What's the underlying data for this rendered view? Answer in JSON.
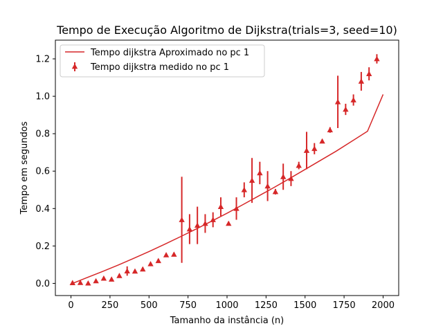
{
  "chart_data": {
    "type": "scatter",
    "title": "Tempo de Execução Algoritmo de Dijkstra(trials=3, seed=10)",
    "xlabel": "Tamanho da instância (n)",
    "ylabel": "Tempo em segundos",
    "xlim": [
      -100,
      2100
    ],
    "ylim": [
      -0.065,
      1.3
    ],
    "xticks": [
      0,
      250,
      500,
      750,
      1000,
      1250,
      1500,
      1750,
      2000
    ],
    "yticks": [
      0.0,
      0.2,
      0.4,
      0.6,
      0.8,
      1.0,
      1.2
    ],
    "xtick_labels": [
      "0",
      "250",
      "500",
      "750",
      "1000",
      "1250",
      "1500",
      "1750",
      "2000"
    ],
    "ytick_labels": [
      "0.0",
      "0.2",
      "0.4",
      "0.6",
      "0.8",
      "1.0",
      "1.2"
    ],
    "grid": false,
    "legend_position": "top-left",
    "color": "#d62728",
    "series": [
      {
        "name": "Tempo dijkstra Aproximado no pc 1",
        "kind": "line",
        "x": [
          10,
          100,
          200,
          300,
          400,
          500,
          600,
          700,
          800,
          900,
          1000,
          1100,
          1200,
          1300,
          1400,
          1500,
          1600,
          1700,
          1800,
          1900,
          2000
        ],
        "y": [
          0.0,
          0.03,
          0.063,
          0.097,
          0.133,
          0.17,
          0.209,
          0.249,
          0.29,
          0.332,
          0.375,
          0.42,
          0.466,
          0.512,
          0.56,
          0.609,
          0.658,
          0.707,
          0.76,
          0.813,
          1.01
        ]
      },
      {
        "name": "Tempo dijkstra medido no pc 1",
        "kind": "errorbar",
        "marker": "triangle",
        "points": [
          {
            "x": 10,
            "y": 0.003,
            "err": 0.005
          },
          {
            "x": 60,
            "y": 0.004,
            "err": 0.005
          },
          {
            "x": 110,
            "y": 0.001,
            "err": 0.005
          },
          {
            "x": 160,
            "y": 0.013,
            "err": 0.005
          },
          {
            "x": 210,
            "y": 0.027,
            "err": 0.008
          },
          {
            "x": 260,
            "y": 0.022,
            "err": 0.008
          },
          {
            "x": 310,
            "y": 0.041,
            "err": 0.01
          },
          {
            "x": 360,
            "y": 0.066,
            "err": 0.025
          },
          {
            "x": 410,
            "y": 0.065,
            "err": 0.01
          },
          {
            "x": 460,
            "y": 0.076,
            "err": 0.01
          },
          {
            "x": 510,
            "y": 0.104,
            "err": 0.01
          },
          {
            "x": 560,
            "y": 0.121,
            "err": 0.01
          },
          {
            "x": 610,
            "y": 0.152,
            "err": 0.01
          },
          {
            "x": 660,
            "y": 0.155,
            "err": 0.01
          },
          {
            "x": 710,
            "y": 0.34,
            "err": 0.23
          },
          {
            "x": 760,
            "y": 0.29,
            "err": 0.08
          },
          {
            "x": 810,
            "y": 0.31,
            "err": 0.1
          },
          {
            "x": 860,
            "y": 0.32,
            "err": 0.05
          },
          {
            "x": 910,
            "y": 0.34,
            "err": 0.04
          },
          {
            "x": 960,
            "y": 0.41,
            "err": 0.05
          },
          {
            "x": 1010,
            "y": 0.32,
            "err": 0.01
          },
          {
            "x": 1060,
            "y": 0.4,
            "err": 0.06
          },
          {
            "x": 1110,
            "y": 0.5,
            "err": 0.04
          },
          {
            "x": 1160,
            "y": 0.55,
            "err": 0.12
          },
          {
            "x": 1210,
            "y": 0.59,
            "err": 0.06
          },
          {
            "x": 1260,
            "y": 0.52,
            "err": 0.08
          },
          {
            "x": 1310,
            "y": 0.49,
            "err": 0.015
          },
          {
            "x": 1360,
            "y": 0.57,
            "err": 0.07
          },
          {
            "x": 1410,
            "y": 0.56,
            "err": 0.04
          },
          {
            "x": 1460,
            "y": 0.63,
            "err": 0.02
          },
          {
            "x": 1510,
            "y": 0.71,
            "err": 0.1
          },
          {
            "x": 1560,
            "y": 0.72,
            "err": 0.03
          },
          {
            "x": 1610,
            "y": 0.76,
            "err": 0.01
          },
          {
            "x": 1660,
            "y": 0.82,
            "err": 0.015
          },
          {
            "x": 1710,
            "y": 0.97,
            "err": 0.14
          },
          {
            "x": 1760,
            "y": 0.93,
            "err": 0.03
          },
          {
            "x": 1810,
            "y": 0.98,
            "err": 0.03
          },
          {
            "x": 1860,
            "y": 1.08,
            "err": 0.05
          },
          {
            "x": 1910,
            "y": 1.12,
            "err": 0.035
          },
          {
            "x": 1960,
            "y": 1.2,
            "err": 0.025
          }
        ]
      }
    ]
  }
}
